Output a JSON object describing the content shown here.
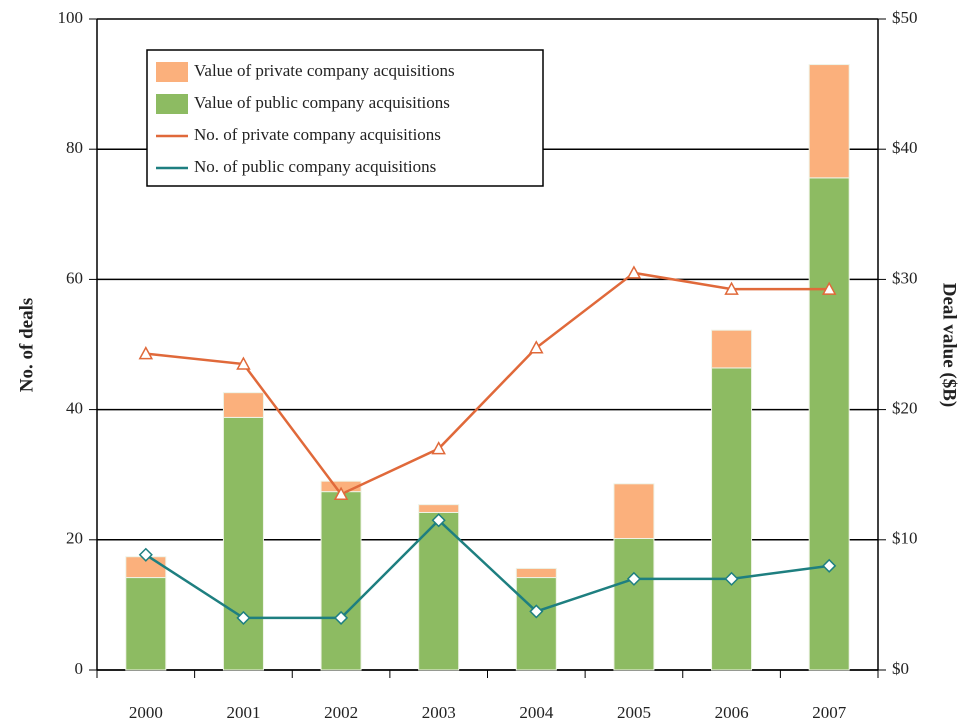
{
  "chart_data": {
    "type": "bar_line",
    "categories": [
      "2000",
      "2001",
      "2002",
      "2003",
      "2004",
      "2005",
      "2006",
      "2007"
    ],
    "ylabel": "No. of deals",
    "y2label": "Deal value ($B)",
    "ylim": [
      0,
      100
    ],
    "yticks": [
      0,
      20,
      40,
      60,
      80,
      100
    ],
    "y2lim": [
      0,
      50
    ],
    "y2ticks": [
      {
        "value": 0,
        "label": "$0"
      },
      {
        "value": 10,
        "label": "$10"
      },
      {
        "value": 20,
        "label": "$20"
      },
      {
        "value": 30,
        "label": "$30"
      },
      {
        "value": 40,
        "label": "$40"
      },
      {
        "value": 50,
        "label": "$50"
      }
    ],
    "grid": true,
    "series": [
      {
        "name": "Value of public company acquisitions",
        "kind": "bar",
        "axis": "y2",
        "color": "#8dbb62",
        "values": [
          7.1,
          19.4,
          13.7,
          12.1,
          7.1,
          10.1,
          23.2,
          37.8
        ]
      },
      {
        "name": "Value of private company acquisitions",
        "kind": "bar",
        "axis": "y2",
        "color": "#fbb07c",
        "values": [
          1.6,
          1.9,
          0.8,
          0.6,
          0.7,
          4.2,
          2.9,
          8.7
        ]
      },
      {
        "name": "No. of private company acquisitions",
        "kind": "line",
        "color": "#e0693a",
        "values": [
          48.6,
          47,
          27,
          34,
          49.5,
          61,
          58.5,
          58.5
        ]
      },
      {
        "name": "No. of public company acquisitions",
        "kind": "line",
        "color": "#1e7f80",
        "values": [
          17.7,
          8,
          8,
          23,
          9,
          14,
          14,
          16
        ]
      }
    ]
  }
}
